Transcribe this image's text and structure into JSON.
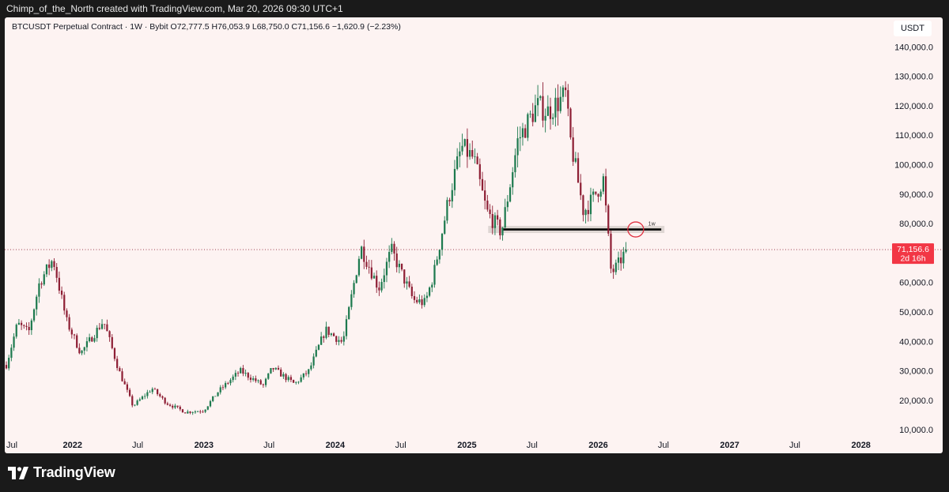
{
  "header": {
    "credit": "Chimp_of_the_North created with TradingView.com, Mar 20, 2026 09:30 UTC+1"
  },
  "chart_header": {
    "symbol_line": "BTCUSDT Perpetual Contract · 1W · Bybit  O72,777.5  H76,053.9  L68,750.0  C71,156.6  −1,620.9 (−2.23%)"
  },
  "currency": "USDT",
  "brand": "TradingView",
  "colors": {
    "background": "#fdf3f2",
    "up": "#1e7a4f",
    "down": "#8e1f35",
    "price_label": "#f23645",
    "level_line": "#000000",
    "level_band": "#d8d0ce",
    "circle": "#e03040"
  },
  "chart_data": {
    "type": "candlestick",
    "timeframe": "1W",
    "y_axis": {
      "ticks": [
        "10,000.0",
        "20,000.0",
        "30,000.0",
        "40,000.0",
        "50,000.0",
        "60,000.0",
        "70,000.0",
        "80,000.0",
        "90,000.0",
        "100,000.0",
        "110,000.0",
        "120,000.0",
        "130,000.0",
        "140,000.0"
      ],
      "tick_values": [
        10000,
        20000,
        30000,
        40000,
        50000,
        60000,
        70000,
        80000,
        90000,
        100000,
        110000,
        120000,
        130000,
        140000
      ],
      "range": [
        2000,
        150000
      ],
      "position": "right"
    },
    "x_axis": {
      "labels": [
        "Jul",
        "2022",
        "Jul",
        "2023",
        "Jul",
        "2024",
        "Jul",
        "2025",
        "Jul",
        "2026",
        "Jul",
        "2027",
        "Jul",
        "2028"
      ],
      "bold": [
        false,
        true,
        false,
        true,
        false,
        true,
        false,
        true,
        false,
        true,
        false,
        true,
        false,
        true
      ],
      "label_dates": [
        "2021-07-01",
        "2022-01-01",
        "2022-07-01",
        "2023-01-01",
        "2023-07-01",
        "2024-01-01",
        "2024-07-01",
        "2025-01-01",
        "2025-07-01",
        "2026-01-01",
        "2026-07-01",
        "2027-01-01",
        "2027-07-01",
        "2028-01-01"
      ],
      "range": [
        "2021-07-01",
        "2028-03-01"
      ]
    },
    "last_price": {
      "value": 71156.6,
      "label": "71,156.6",
      "countdown": "2d 16h"
    },
    "horizontal_level": {
      "value": 78000,
      "label": "1w",
      "start": "2025-03-01",
      "end": "2026-06-25"
    },
    "highlight_circle": {
      "date": "2026-04-15",
      "value": 78000
    },
    "anchors": [
      [
        "2021-07-01",
        32000
      ],
      [
        "2021-08-01",
        46000
      ],
      [
        "2021-09-01",
        43000
      ],
      [
        "2021-10-01",
        60000
      ],
      [
        "2021-11-08",
        68000
      ],
      [
        "2021-12-15",
        47000
      ],
      [
        "2022-01-24",
        36000
      ],
      [
        "2022-03-28",
        47000
      ],
      [
        "2022-05-10",
        30000
      ],
      [
        "2022-06-18",
        18000
      ],
      [
        "2022-08-10",
        24000
      ],
      [
        "2022-09-20",
        19000
      ],
      [
        "2022-11-10",
        16000
      ],
      [
        "2022-12-31",
        16500
      ],
      [
        "2023-02-10",
        23000
      ],
      [
        "2023-04-12",
        30000
      ],
      [
        "2023-06-15",
        25000
      ],
      [
        "2023-07-10",
        31000
      ],
      [
        "2023-09-10",
        25500
      ],
      [
        "2023-10-20",
        30000
      ],
      [
        "2023-12-05",
        44000
      ],
      [
        "2024-01-22",
        39500
      ],
      [
        "2024-03-12",
        72000
      ],
      [
        "2024-05-01",
        58000
      ],
      [
        "2024-06-05",
        71000
      ],
      [
        "2024-08-05",
        54000
      ],
      [
        "2024-09-07",
        53000
      ],
      [
        "2024-10-01",
        63000
      ],
      [
        "2024-11-12",
        89000
      ],
      [
        "2024-12-17",
        106000
      ],
      [
        "2025-01-20",
        102000
      ],
      [
        "2025-02-25",
        84000
      ],
      [
        "2025-04-07",
        77000
      ],
      [
        "2025-05-22",
        108000
      ],
      [
        "2025-07-14",
        120000
      ],
      [
        "2025-08-14",
        118000
      ],
      [
        "2025-10-06",
        124000
      ],
      [
        "2025-10-10",
        112000
      ],
      [
        "2025-11-21",
        84000
      ],
      [
        "2025-12-15",
        88000
      ],
      [
        "2026-01-15",
        95000
      ],
      [
        "2026-02-06",
        63000
      ],
      [
        "2026-02-25",
        66000
      ],
      [
        "2026-03-20",
        71156.6
      ]
    ]
  }
}
